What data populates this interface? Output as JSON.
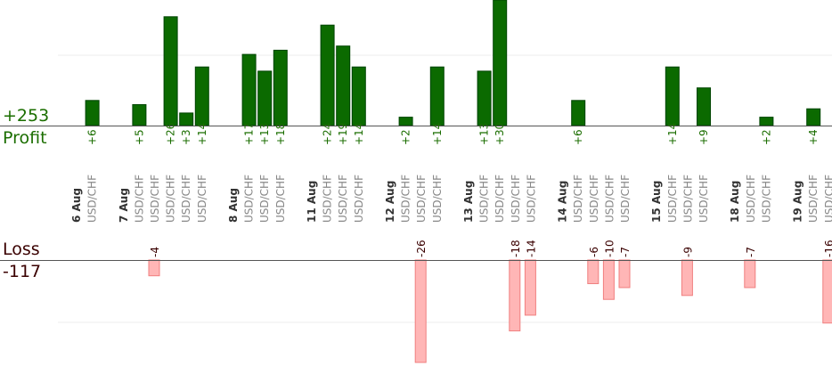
{
  "summary": {
    "profit_label": "Profit",
    "profit_total": "+253",
    "loss_label": "Loss",
    "loss_total": "-117"
  },
  "colors": {
    "profit_bar": "#0b6a00",
    "profit_bar_dark": "#004400",
    "profit_text": "#1b6e00",
    "loss_bar": "#ffb6b6",
    "loss_bar_border": "#f07f7f",
    "loss_text": "#3a0000",
    "date_text": "#333333",
    "pair_text": "#888888",
    "baseline": "#555555",
    "grid": "#eeeeee"
  },
  "chart_data": {
    "type": "bar",
    "profit_scale_max": 30,
    "loss_scale_max": 26,
    "groups": [
      {
        "date": "6 Aug",
        "trades": [
          {
            "pair": "USD/CHF",
            "value": 6
          }
        ]
      },
      {
        "date": "7 Aug",
        "trades": [
          {
            "pair": "USD/CHF",
            "value": 5
          },
          {
            "pair": "USD/CHF",
            "value": -4
          },
          {
            "pair": "USD/CHF",
            "value": 26
          },
          {
            "pair": "USD/CHF",
            "value": 3
          },
          {
            "pair": "USD/CHF",
            "value": 14
          }
        ]
      },
      {
        "date": "8 Aug",
        "trades": [
          {
            "pair": "USD/CHF",
            "value": 17
          },
          {
            "pair": "USD/CHF",
            "value": 13
          },
          {
            "pair": "USD/CHF",
            "value": 18
          }
        ]
      },
      {
        "date": "11 Aug",
        "trades": [
          {
            "pair": "USD/CHF",
            "value": 24
          },
          {
            "pair": "USD/CHF",
            "value": 19
          },
          {
            "pair": "USD/CHF",
            "value": 14
          }
        ]
      },
      {
        "date": "12 Aug",
        "trades": [
          {
            "pair": "USD/CHF",
            "value": 2
          },
          {
            "pair": "USD/CHF",
            "value": -26
          },
          {
            "pair": "USD/CHF",
            "value": 14
          }
        ]
      },
      {
        "date": "13 Aug",
        "trades": [
          {
            "pair": "USD/CHF",
            "value": 13
          },
          {
            "pair": "USD/CHF",
            "value": 30
          },
          {
            "pair": "USD/CHF",
            "value": -18
          },
          {
            "pair": "USD/CHF",
            "value": -14
          }
        ]
      },
      {
        "date": "14 Aug",
        "trades": [
          {
            "pair": "USD/CHF",
            "value": 6
          },
          {
            "pair": "USD/CHF",
            "value": -6
          },
          {
            "pair": "USD/CHF",
            "value": -10
          },
          {
            "pair": "USD/CHF",
            "value": -7
          }
        ]
      },
      {
        "date": "15 Aug",
        "trades": [
          {
            "pair": "USD/CHF",
            "value": 14
          },
          {
            "pair": "USD/CHF",
            "value": -9
          },
          {
            "pair": "USD/CHF",
            "value": 9
          }
        ]
      },
      {
        "date": "18 Aug",
        "trades": [
          {
            "pair": "USD/CHF",
            "value": -7
          },
          {
            "pair": "USD/CHF",
            "value": 2
          }
        ]
      },
      {
        "date": "19 Aug",
        "trades": [
          {
            "pair": "USD/CHF",
            "value": 4
          },
          {
            "pair": "USD/CHF",
            "value": -16
          }
        ]
      }
    ]
  }
}
